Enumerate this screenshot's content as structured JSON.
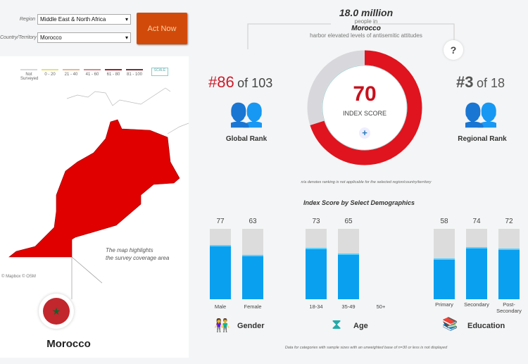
{
  "filters": {
    "region_label": "Region",
    "region_value": "Middle East & North Africa",
    "country_label": "Country/Territory",
    "country_value": "Morocco",
    "act_now": "Act Now"
  },
  "legend": {
    "items": [
      {
        "label": "Not Surveyed",
        "color": "#d8d8d8"
      },
      {
        "label": "0 - 20",
        "color": "#e8e07a"
      },
      {
        "label": "21 - 40",
        "color": "#e8b890"
      },
      {
        "label": "41 - 60",
        "color": "#d88890"
      },
      {
        "label": "61 - 80",
        "color": "#a0202c"
      },
      {
        "label": "81 - 100",
        "color": "#7a3038"
      }
    ],
    "scale": "SCALE"
  },
  "map": {
    "note1": "The map highlights",
    "note2": "the survey coverage area",
    "credit": "© Mapbox © OSM",
    "fill": "#e00000"
  },
  "country": {
    "name": "Morocco"
  },
  "summary": {
    "count": "18.0 million",
    "line1": "people in",
    "country": "Morocco",
    "line2": "harbor elevated levels of antisemitic attitudes",
    "help": "?"
  },
  "global_rank": {
    "rank": "#86",
    "of": "of 103",
    "label": "Global Rank"
  },
  "regional_rank": {
    "rank": "#3",
    "of": "of 18",
    "label": "Regional Rank"
  },
  "index": {
    "score": "70",
    "label": "INDEX SCORE",
    "value": 70,
    "color": "#e0141e"
  },
  "na_note": "n/a denotes ranking is not applicable for the selected region/country/territory",
  "demographics": {
    "title": "Index Score by Select Demographics",
    "footnote": "Data for categories with sample sizes with an unweighted base of n=30 or less is not displayed",
    "groups": [
      {
        "name": "Gender"
      },
      {
        "name": "Age"
      },
      {
        "name": "Education"
      }
    ],
    "bars": [
      {
        "label": "Male",
        "value": 77,
        "display": "77"
      },
      {
        "label": "Female",
        "value": 63,
        "display": "63"
      },
      {
        "label": "18-34",
        "value": 73,
        "display": "73"
      },
      {
        "label": "35-49",
        "value": 65,
        "display": "65"
      },
      {
        "label": "50+"
      },
      {
        "label": "Primary",
        "value": 58,
        "display": "58"
      },
      {
        "label": "Secondary",
        "value": 74,
        "display": "74"
      },
      {
        "label": "Post-Secondary",
        "value": 72,
        "display": "72"
      }
    ]
  }
}
